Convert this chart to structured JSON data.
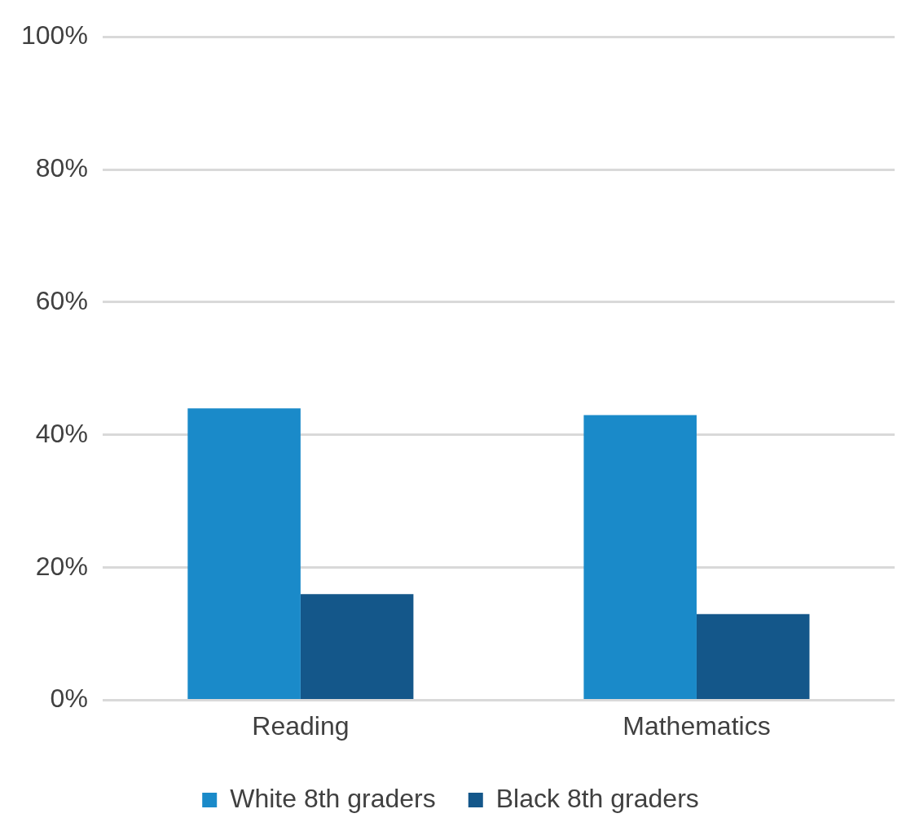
{
  "chart_data": {
    "type": "bar",
    "categories": [
      "Reading",
      "Mathematics"
    ],
    "series": [
      {
        "name": "White 8th graders",
        "color": "#1a8ac9",
        "values": [
          44,
          43
        ]
      },
      {
        "name": "Black 8th graders",
        "color": "#14578a",
        "values": [
          16,
          13
        ]
      }
    ],
    "ylim": [
      0,
      100
    ],
    "yticks": [
      {
        "value": 0,
        "label": "0%"
      },
      {
        "value": 20,
        "label": "20%"
      },
      {
        "value": 40,
        "label": "40%"
      },
      {
        "value": 60,
        "label": "60%"
      },
      {
        "value": 80,
        "label": "80%"
      },
      {
        "value": 100,
        "label": "100%"
      }
    ],
    "grid": "y",
    "legend": "bottom"
  }
}
